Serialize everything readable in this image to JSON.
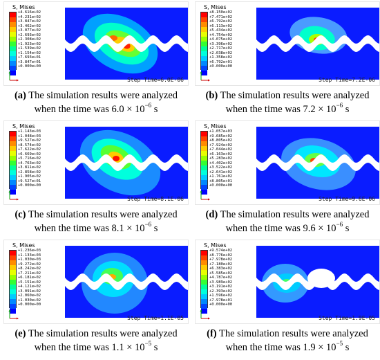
{
  "colors": [
    "#ff0000",
    "#ff4500",
    "#ff8c00",
    "#ffcc00",
    "#e8ff00",
    "#99ff00",
    "#33ff33",
    "#00ff99",
    "#00ffdd",
    "#00ccff",
    "#0088ff",
    "#0044ff",
    "#0000ff"
  ],
  "panels": [
    {
      "id": "a",
      "legend_title": "S, Mises",
      "legend_values": [
        "+4.616e+02",
        "+4.231e+02",
        "+3.847e+02",
        "+3.462e+02",
        "+3.077e+02",
        "+2.693e+02",
        "+2.308e+02",
        "+1.923e+02",
        "+1.539e+02",
        "+1.154e+02",
        "+7.693e+01",
        "+3.847e+01",
        "+0.000e+00"
      ],
      "step_text": "Step Time=6.0E-06",
      "caption_label": "(a)",
      "caption_line1": "The simulation results were analyzed",
      "caption_prefix": "when the time was 6.0 × 10",
      "caption_exp": "−6",
      "caption_unit": "s"
    },
    {
      "id": "b",
      "legend_title": "S, Mises",
      "legend_values": [
        "+8.150e+02",
        "+7.471e+02",
        "+6.792e+02",
        "+6.113e+02",
        "+5.434e+02",
        "+4.754e+02",
        "+4.075e+02",
        "+3.396e+02",
        "+2.717e+02",
        "+2.038e+02",
        "+1.358e+02",
        "+6.792e+01",
        "+0.000e+00"
      ],
      "step_text": "Step Time=7.2E-06",
      "caption_label": "(b)",
      "caption_line1": "The simulation results were analyzed",
      "caption_prefix": "when the time was 7.2 × 10",
      "caption_exp": "−6",
      "caption_unit": "s"
    },
    {
      "id": "c",
      "legend_title": "S, Mises",
      "legend_values": [
        "+1.143e+03",
        "+1.048e+03",
        "+9.527e+02",
        "+8.574e+02",
        "+7.622e+02",
        "+6.669e+02",
        "+5.716e+02",
        "+4.763e+02",
        "+3.811e+02",
        "+2.858e+02",
        "+1.905e+02",
        "+9.527e+01",
        "+0.000e+00"
      ],
      "step_text": "Step Time=8.1E-06",
      "caption_label": "(c)",
      "caption_line1": "The simulation results were analyzed",
      "caption_prefix": "when the time was 8.1 × 10",
      "caption_exp": "−6",
      "caption_unit": "s"
    },
    {
      "id": "d",
      "legend_title": "S, Mises",
      "legend_values": [
        "+1.057e+03",
        "+9.685e+02",
        "+8.805e+02",
        "+7.924e+02",
        "+7.044e+02",
        "+6.163e+02",
        "+5.283e+02",
        "+4.402e+02",
        "+3.522e+02",
        "+2.641e+02",
        "+1.761e+02",
        "+8.805e+01",
        "+0.000e+00"
      ],
      "step_text": "Step Time=9.6E-06",
      "caption_label": "(d)",
      "caption_line1": "The simulation results were analyzed",
      "caption_prefix": "when the time was 9.6 × 10",
      "caption_exp": "−6",
      "caption_unit": "s"
    },
    {
      "id": "e",
      "legend_title": "S, Mises",
      "legend_values": [
        "+1.236e+03",
        "+1.133e+03",
        "+1.030e+03",
        "+9.272e+02",
        "+8.242e+02",
        "+7.211e+02",
        "+6.181e+02",
        "+5.151e+02",
        "+4.121e+02",
        "+3.091e+02",
        "+2.060e+02",
        "+1.030e+02",
        "+0.000e+00"
      ],
      "step_text": "Step Time=1.1E-05",
      "caption_label": "(e)",
      "caption_line1": "The simulation results were analyzed",
      "caption_prefix": "when the time was 1.1 × 10",
      "caption_exp": "−5",
      "caption_unit": "s"
    },
    {
      "id": "f",
      "legend_title": "S, Mises",
      "legend_values": [
        "+9.574e+02",
        "+8.776e+02",
        "+7.978e+02",
        "+7.180e+02",
        "+6.383e+02",
        "+5.585e+02",
        "+4.787e+02",
        "+3.989e+02",
        "+3.191e+02",
        "+2.393e+02",
        "+1.596e+02",
        "+7.978e+01",
        "+0.000e+00"
      ],
      "step_text": "Step Time=1.9E-05",
      "caption_label": "(f)",
      "caption_line1": "The simulation results were analyzed",
      "caption_prefix": "when the time was 1.9 × 10",
      "caption_exp": "−5",
      "caption_unit": "s"
    }
  ]
}
